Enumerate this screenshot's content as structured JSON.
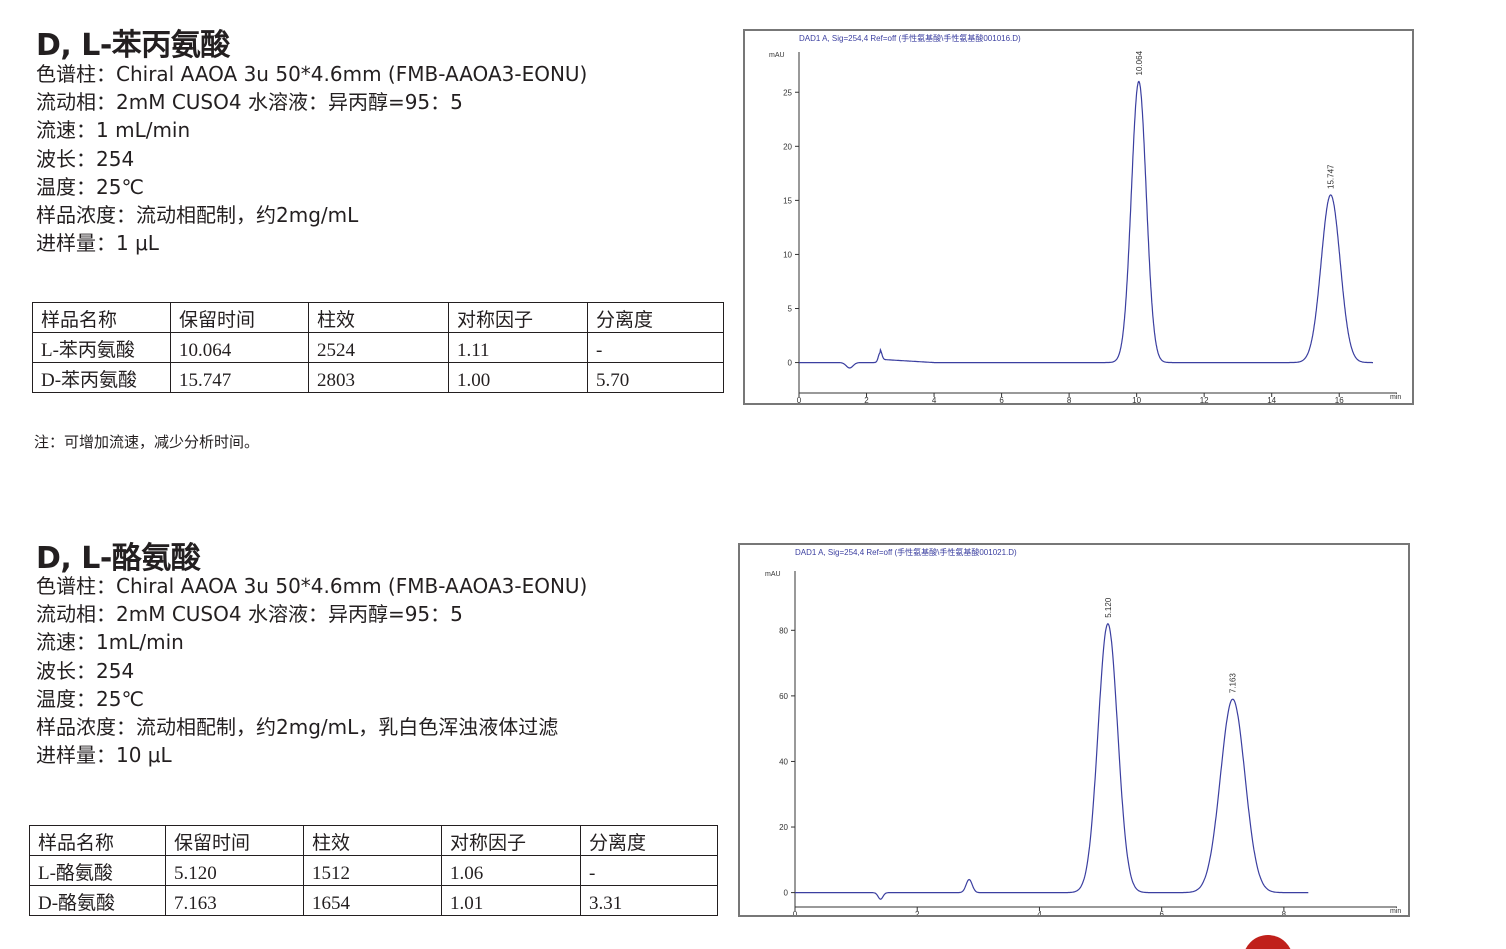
{
  "sections": [
    {
      "title": "D, L-苯丙氨酸",
      "info": [
        "色谱柱：Chiral AAOA 3u 50*4.6mm (FMB-AAOA3-EONU)",
        "流动相：2mM CUSO4 水溶液：异丙醇=95：5",
        "流速：1 mL/min",
        "波长：254",
        "温度：25℃",
        "样品浓度：流动相配制，约2mg/mL",
        "进样量：1 μL"
      ],
      "table": {
        "headers": [
          "样品名称",
          "保留时间",
          "柱效",
          "对称因子",
          "分离度"
        ],
        "rows": [
          [
            "L-苯丙氨酸",
            "10.064",
            "2524",
            "1.11",
            "-"
          ],
          [
            "D-苯丙氨酸",
            "15.747",
            "2803",
            "1.00",
            "5.70"
          ]
        ]
      },
      "note": "注：可增加流速，减少分析时间。"
    },
    {
      "title": "D, L-酪氨酸",
      "info": [
        "色谱柱：Chiral AAOA 3u 50*4.6mm (FMB-AAOA3-EONU)",
        "流动相：2mM CUSO4 水溶液：异丙醇=95：5",
        "流速：1mL/min",
        "波长：254",
        "温度：25℃",
        "样品浓度：流动相配制，约2mg/mL，乳白色浑浊液体过滤",
        "进样量：10 μL"
      ],
      "table": {
        "headers": [
          "样品名称",
          "保留时间",
          "柱效",
          "对称因子",
          "分离度"
        ],
        "rows": [
          [
            "L-酪氨酸",
            "5.120",
            "1512",
            "1.06",
            "-"
          ],
          [
            "D-酪氨酸",
            "7.163",
            "1654",
            "1.01",
            "3.31"
          ]
        ]
      }
    }
  ],
  "chart_data": [
    {
      "type": "line",
      "title": "DAD1 A, Sig=254,4 Ref=off (手性氨基酸\\手性氨基酸001016.D)",
      "ylabel": "mAU",
      "xlabel": "min",
      "line_color": "#3b3fa0",
      "xlim": [
        0,
        17.8
      ],
      "ylim": [
        -3,
        29
      ],
      "xticks": [
        0,
        2,
        4,
        6,
        8,
        10,
        12,
        14,
        16
      ],
      "yticks": [
        0,
        5,
        10,
        15,
        20,
        25
      ],
      "peaks": [
        {
          "x": 10.064,
          "y": 26,
          "label": "10.064"
        },
        {
          "x": 15.747,
          "y": 15.5,
          "label": "15.747"
        }
      ],
      "x_end": 17
    },
    {
      "type": "line",
      "title": "DAD1 A, Sig=254,4 Ref=off (手性氨基酸\\手性氨基酸001021.D)",
      "ylabel": "mAU",
      "xlabel": "min",
      "line_color": "#3b3fa0",
      "xlim": [
        0,
        9.9
      ],
      "ylim": [
        -5,
        99
      ],
      "xticks": [
        0,
        2,
        4,
        6,
        8
      ],
      "yticks": [
        0,
        20,
        40,
        60,
        80
      ],
      "peaks": [
        {
          "x": 5.12,
          "y": 82,
          "label": "5.120"
        },
        {
          "x": 7.163,
          "y": 59,
          "label": "7.163"
        }
      ],
      "x_end": 8.4
    }
  ]
}
